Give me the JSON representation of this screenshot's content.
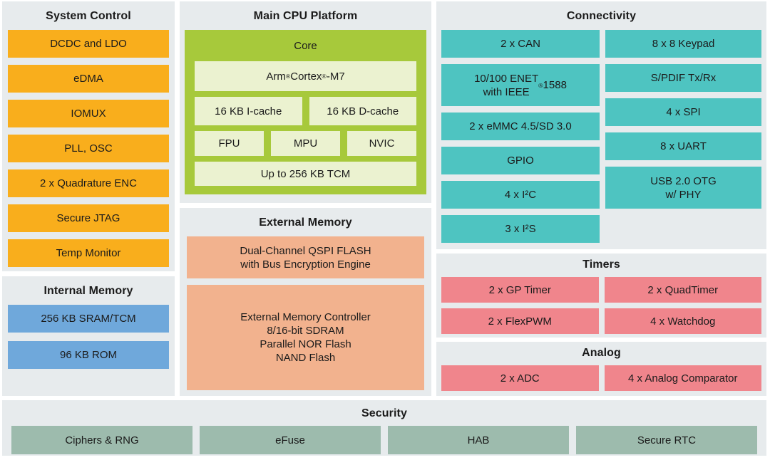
{
  "colors": {
    "panel_bg": "#E7EBED",
    "orange": "#F9AE1C",
    "lime": "#A7C93B",
    "lime_light": "#EBF2D0",
    "teal": "#4EC4C1",
    "blue": "#6FA8DB",
    "salmon": "#F2B28E",
    "pink": "#F0858C",
    "sage": "#9DBBAD",
    "text": "#1B1B1B"
  },
  "panels": {
    "system_control": {
      "title": "System Control",
      "items": [
        "DCDC and LDO",
        "eDMA",
        "IOMUX",
        "PLL, OSC",
        "2 x Quadrature ENC",
        "Secure JTAG",
        "Temp Monitor"
      ]
    },
    "internal_memory": {
      "title": "Internal Memory",
      "items": [
        "256 KB SRAM/TCM",
        "96 KB ROM"
      ]
    },
    "main_cpu": {
      "title": "Main CPU Platform",
      "core": {
        "label": "Core",
        "processor": "Arm® Cortex®-M7",
        "icache": "16 KB I-cache",
        "dcache": "16 KB D-cache",
        "fpu": "FPU",
        "mpu": "MPU",
        "nvic": "NVIC",
        "tcm": "Up to 256 KB TCM"
      }
    },
    "external_memory": {
      "title": "External Memory",
      "qspi": "Dual-Channel QSPI FLASH\nwith Bus Encryption Engine",
      "controller": "External Memory Controller\n8/16-bit SDRAM\nParallel NOR Flash\nNAND Flash"
    },
    "connectivity": {
      "title": "Connectivity",
      "left": [
        "2 x CAN",
        "10/100 ENET\nwith IEEE® 1588",
        "2 x eMMC 4.5/SD 3.0",
        "GPIO",
        "4 x I²C",
        "3 x I²S"
      ],
      "right": [
        "8 x 8 Keypad",
        "S/PDIF Tx/Rx",
        "4 x SPI",
        "8 x UART",
        "USB 2.0 OTG\nw/ PHY"
      ]
    },
    "timers": {
      "title": "Timers",
      "items": [
        "2 x GP Timer",
        "2 x QuadTimer",
        "2 x FlexPWM",
        "4 x Watchdog"
      ]
    },
    "analog": {
      "title": "Analog",
      "items": [
        "2 x ADC",
        "4 x Analog Comparator"
      ]
    },
    "security": {
      "title": "Security",
      "items": [
        "Ciphers & RNG",
        "eFuse",
        "HAB",
        "Secure RTC"
      ]
    }
  }
}
